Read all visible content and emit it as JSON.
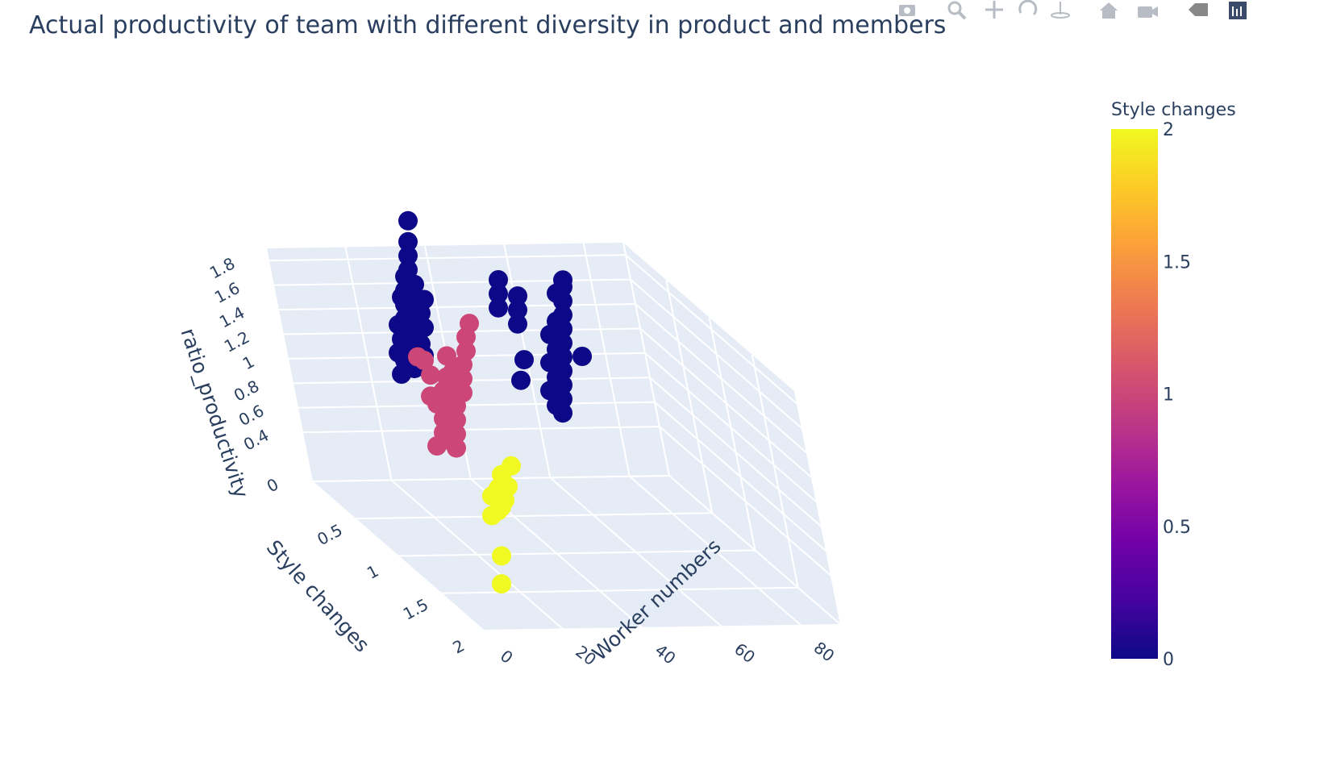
{
  "title": "Actual productivity of team with different diversity in product and members",
  "modebar": {
    "buttons": [
      {
        "name": "camera-icon",
        "title": "Download plot as a png"
      },
      {
        "name": "zoom-icon",
        "title": "Zoom"
      },
      {
        "name": "pan-icon",
        "title": "Pan"
      },
      {
        "name": "orbit-rotation-icon",
        "title": "Orbital rotation"
      },
      {
        "name": "turntable-rotation-icon",
        "title": "Turntable rotation"
      },
      {
        "name": "home-icon",
        "title": "Reset camera to default"
      },
      {
        "name": "camera-view-icon",
        "title": "Reset camera to last save"
      },
      {
        "name": "hover-toggle-icon",
        "title": "Toggle show closest data on hover"
      },
      {
        "name": "plotly-logo-icon",
        "title": "Produced with Plotly"
      }
    ]
  },
  "chart_data": {
    "type": "scatter3d",
    "title": "Actual productivity of team with different diversity in product and members",
    "axes": {
      "x": {
        "label": "Worker numbers",
        "range": [
          0,
          90
        ],
        "ticks": [
          0,
          20,
          40,
          60,
          80
        ]
      },
      "y": {
        "label": "Style changes",
        "range": [
          0,
          2
        ],
        "ticks": [
          0.5,
          1,
          1.5,
          2
        ]
      },
      "z": {
        "label": "ratio_productivity",
        "range": [
          0,
          1.9
        ],
        "ticks": [
          0,
          0.4,
          0.6,
          0.8,
          1,
          1.2,
          1.4,
          1.6,
          1.8
        ]
      }
    },
    "colorbar": {
      "title": "Style changes",
      "range": [
        0,
        2
      ],
      "ticks": [
        0,
        0.5,
        1,
        1.5,
        2
      ],
      "colorscale": [
        "#0d0887",
        "#46039f",
        "#7201a8",
        "#9c179e",
        "#bd3786",
        "#d8576b",
        "#ed7953",
        "#fb9f3a",
        "#fdca26",
        "#f0f921"
      ]
    },
    "series": [
      {
        "style_changes": 0,
        "color": "#0d0887",
        "points": [
          [
            2,
            0,
            1.02
          ],
          [
            8,
            0,
            0.6
          ],
          [
            8,
            0,
            0.7
          ],
          [
            8,
            0,
            0.8
          ],
          [
            8,
            0,
            0.9
          ],
          [
            8,
            0,
            1.0
          ],
          [
            8,
            0,
            1.1
          ],
          [
            8,
            0,
            1.2
          ],
          [
            8,
            0,
            1.3
          ],
          [
            8,
            0,
            1.4
          ],
          [
            8,
            0,
            1.5
          ],
          [
            8,
            0,
            1.55
          ],
          [
            10,
            0,
            0.65
          ],
          [
            10,
            0,
            0.85
          ],
          [
            10,
            0,
            1.05
          ],
          [
            10,
            0,
            1.25
          ],
          [
            10,
            0,
            1.45
          ],
          [
            12,
            0,
            0.75
          ],
          [
            12,
            0,
            0.95
          ],
          [
            12,
            0,
            1.15
          ],
          [
            20,
            0,
            0.95
          ],
          [
            21,
            0,
            0.8
          ],
          [
            22,
            0,
            1.4
          ],
          [
            22,
            0,
            1.2
          ],
          [
            22,
            0,
            1.3
          ],
          [
            28,
            0,
            1.3
          ],
          [
            28,
            0,
            1.4
          ],
          [
            28,
            0,
            1.5
          ],
          [
            56,
            0,
            1.85
          ],
          [
            56,
            0,
            1.7
          ],
          [
            56,
            0,
            1.6
          ],
          [
            56,
            0,
            1.5
          ],
          [
            54,
            0,
            1.4
          ],
          [
            54,
            0,
            1.3
          ],
          [
            54,
            0,
            1.2
          ],
          [
            54,
            0,
            1.1
          ],
          [
            54,
            0,
            1.0
          ],
          [
            54,
            0,
            0.9
          ],
          [
            54,
            0,
            0.8
          ],
          [
            57,
            0,
            1.45
          ],
          [
            57,
            0,
            1.35
          ],
          [
            57,
            0,
            1.25
          ],
          [
            57,
            0,
            1.15
          ],
          [
            57,
            0,
            1.05
          ],
          [
            57,
            0,
            0.95
          ],
          [
            57,
            0,
            0.85
          ],
          [
            58,
            0,
            1.3
          ],
          [
            58,
            0,
            1.0
          ],
          [
            58,
            0,
            0.75
          ],
          [
            51,
            0,
            1.3
          ],
          [
            51,
            0,
            1.1
          ],
          [
            51,
            0,
            0.9
          ],
          [
            52,
            0,
            1.2
          ],
          [
            52,
            0,
            0.98
          ],
          [
            59,
            0,
            1.1
          ],
          [
            59,
            0,
            0.9
          ]
        ]
      },
      {
        "style_changes": 1,
        "color": "#cc4778",
        "points": [
          [
            52,
            1,
            1.3
          ],
          [
            53,
            1,
            1.2
          ],
          [
            53,
            1,
            1.1
          ],
          [
            54,
            1,
            1.0
          ],
          [
            54,
            1,
            0.9
          ],
          [
            54,
            1,
            0.8
          ],
          [
            56,
            1,
            0.7
          ],
          [
            56,
            1,
            0.6
          ],
          [
            56,
            1,
            0.5
          ],
          [
            56,
            1,
            0.4
          ],
          [
            57,
            1,
            0.95
          ],
          [
            57,
            1,
            0.85
          ],
          [
            58,
            1,
            0.75
          ],
          [
            58,
            1,
            0.65
          ],
          [
            58,
            1,
            0.55
          ],
          [
            58,
            1,
            0.45
          ],
          [
            59,
            1,
            1.05
          ],
          [
            59,
            1,
            0.9
          ],
          [
            60,
            1,
            0.8
          ],
          [
            60,
            1,
            0.6
          ],
          [
            60,
            1,
            0.5
          ],
          [
            62,
            1,
            0.7
          ],
          [
            62,
            1,
            0.4
          ],
          [
            64,
            1,
            0.9
          ],
          [
            64,
            1,
            0.75
          ],
          [
            66,
            1,
            1.0
          ],
          [
            68,
            1,
            1.02
          ]
        ]
      },
      {
        "style_changes": 2,
        "color": "#f0f921",
        "points": [
          [
            54,
            2,
            0.45
          ],
          [
            55,
            2,
            0.3
          ],
          [
            56,
            2,
            0.2
          ],
          [
            57,
            2,
            0.38
          ],
          [
            57,
            2,
            0.15
          ],
          [
            58,
            2,
            0.28
          ],
          [
            58,
            2,
            0.12
          ],
          [
            60,
            2,
            0.22
          ],
          [
            60,
            2,
            0.08
          ],
          [
            57,
            2,
            -0.2
          ],
          [
            57,
            2,
            -0.4
          ]
        ]
      }
    ]
  }
}
